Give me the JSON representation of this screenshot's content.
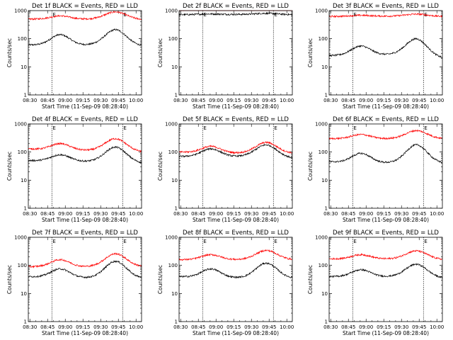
{
  "figure": {
    "xlabel": "Start Time (11-Sep-09 08:28:40)",
    "ylabel": "Counts/sec",
    "x_tick_labels": [
      "08:30",
      "08:45",
      "09:00",
      "09:15",
      "09:30",
      "09:45",
      "10:00"
    ],
    "y_tick_labels": [
      "1",
      "10",
      "100",
      "1000"
    ],
    "marker_labels": [
      "E",
      "E"
    ],
    "colors": {
      "events": "#000000",
      "lld": "#ff0000"
    }
  },
  "chart_data": [
    {
      "type": "line",
      "title": "Det 1f BLACK = Events, RED = LLD",
      "y_scale": "log",
      "ylim": [
        1,
        1000
      ],
      "x_unit": "minutes after 08:28:40",
      "xlim": [
        0,
        96
      ],
      "markers_x": [
        20,
        80
      ],
      "series": [
        {
          "name": "Events",
          "color": "#000000",
          "base": 60,
          "peak1": 140,
          "peak1_x": 27,
          "valley": 60,
          "peak2": 210,
          "peak2_x": 74,
          "end": 55
        },
        {
          "name": "LLD",
          "color": "#ff0000",
          "base": 500,
          "peak1": 650,
          "peak1_x": 27,
          "valley": 500,
          "peak2": 900,
          "peak2_x": 74,
          "end": 480
        }
      ]
    },
    {
      "type": "line",
      "title": "Det 2f BLACK = Events, RED = LLD",
      "y_scale": "log",
      "ylim": [
        1,
        1000
      ],
      "x_unit": "minutes after 08:28:40",
      "xlim": [
        0,
        96
      ],
      "markers_x": [
        20,
        80
      ],
      "series": [
        {
          "name": "Events",
          "color": "#000000",
          "base": 720,
          "peak1": 760,
          "peak1_x": 27,
          "valley": 740,
          "peak2": 800,
          "peak2_x": 74,
          "end": 720
        },
        {
          "name": "LLD",
          "color": "#ff0000",
          "base": 1050,
          "peak1": 1100,
          "peak1_x": 27,
          "valley": 1080,
          "peak2": 1150,
          "peak2_x": 74,
          "end": 1100
        }
      ]
    },
    {
      "type": "line",
      "title": "Det 3f BLACK = Events, RED = LLD",
      "y_scale": "log",
      "ylim": [
        1,
        1000
      ],
      "x_unit": "minutes after 08:28:40",
      "xlim": [
        0,
        96
      ],
      "markers_x": [
        20,
        80
      ],
      "series": [
        {
          "name": "Events",
          "color": "#000000",
          "base": 25,
          "peak1": 55,
          "peak1_x": 27,
          "valley": 28,
          "peak2": 100,
          "peak2_x": 74,
          "end": 20
        },
        {
          "name": "LLD",
          "color": "#ff0000",
          "base": 620,
          "peak1": 680,
          "peak1_x": 27,
          "valley": 640,
          "peak2": 750,
          "peak2_x": 74,
          "end": 620
        }
      ]
    },
    {
      "type": "line",
      "title": "Det 4f BLACK = Events, RED = LLD",
      "y_scale": "log",
      "ylim": [
        1,
        1000
      ],
      "x_unit": "minutes after 08:28:40",
      "xlim": [
        0,
        96
      ],
      "markers_x": [
        20,
        80
      ],
      "series": [
        {
          "name": "Events",
          "color": "#000000",
          "base": 50,
          "peak1": 80,
          "peak1_x": 27,
          "valley": 45,
          "peak2": 150,
          "peak2_x": 74,
          "end": 40
        },
        {
          "name": "LLD",
          "color": "#ff0000",
          "base": 130,
          "peak1": 200,
          "peak1_x": 27,
          "valley": 110,
          "peak2": 300,
          "peak2_x": 74,
          "end": 100
        }
      ]
    },
    {
      "type": "line",
      "title": "Det 5f BLACK = Events, RED = LLD",
      "y_scale": "log",
      "ylim": [
        1,
        1000
      ],
      "x_unit": "minutes after 08:28:40",
      "xlim": [
        0,
        96
      ],
      "markers_x": [
        20,
        80
      ],
      "series": [
        {
          "name": "Events",
          "color": "#000000",
          "base": 70,
          "peak1": 130,
          "peak1_x": 27,
          "valley": 70,
          "peak2": 180,
          "peak2_x": 74,
          "end": 60
        },
        {
          "name": "LLD",
          "color": "#ff0000",
          "base": 100,
          "peak1": 160,
          "peak1_x": 27,
          "valley": 90,
          "peak2": 220,
          "peak2_x": 74,
          "end": 90
        }
      ]
    },
    {
      "type": "line",
      "title": "Det 6f BLACK = Events, RED = LLD",
      "y_scale": "log",
      "ylim": [
        1,
        1000
      ],
      "x_unit": "minutes after 08:28:40",
      "xlim": [
        0,
        96
      ],
      "markers_x": [
        20,
        80
      ],
      "series": [
        {
          "name": "Events",
          "color": "#000000",
          "base": 45,
          "peak1": 90,
          "peak1_x": 27,
          "valley": 40,
          "peak2": 180,
          "peak2_x": 74,
          "end": 40
        },
        {
          "name": "LLD",
          "color": "#ff0000",
          "base": 300,
          "peak1": 420,
          "peak1_x": 27,
          "valley": 300,
          "peak2": 580,
          "peak2_x": 74,
          "end": 300
        }
      ]
    },
    {
      "type": "line",
      "title": "Det 7f BLACK = Events, RED = LLD",
      "y_scale": "log",
      "ylim": [
        1,
        1000
      ],
      "x_unit": "minutes after 08:28:40",
      "xlim": [
        0,
        96
      ],
      "markers_x": [
        20,
        80
      ],
      "series": [
        {
          "name": "Events",
          "color": "#000000",
          "base": 40,
          "peak1": 75,
          "peak1_x": 27,
          "valley": 35,
          "peak2": 140,
          "peak2_x": 74,
          "end": 35
        },
        {
          "name": "LLD",
          "color": "#ff0000",
          "base": 90,
          "peak1": 160,
          "peak1_x": 27,
          "valley": 90,
          "peak2": 260,
          "peak2_x": 74,
          "end": 90
        }
      ]
    },
    {
      "type": "line",
      "title": "Det 8f BLACK = Events, RED = LLD",
      "y_scale": "log",
      "ylim": [
        1,
        1000
      ],
      "x_unit": "minutes after 08:28:40",
      "xlim": [
        0,
        96
      ],
      "markers_x": [
        20,
        80
      ],
      "series": [
        {
          "name": "Events",
          "color": "#000000",
          "base": 40,
          "peak1": 75,
          "peak1_x": 27,
          "valley": 35,
          "peak2": 120,
          "peak2_x": 74,
          "end": 35
        },
        {
          "name": "LLD",
          "color": "#ff0000",
          "base": 160,
          "peak1": 240,
          "peak1_x": 27,
          "valley": 160,
          "peak2": 340,
          "peak2_x": 74,
          "end": 160
        }
      ]
    },
    {
      "type": "line",
      "title": "Det 9f BLACK = Events, RED = LLD",
      "y_scale": "log",
      "ylim": [
        1,
        1000
      ],
      "x_unit": "minutes after 08:28:40",
      "xlim": [
        0,
        96
      ],
      "markers_x": [
        20,
        80
      ],
      "series": [
        {
          "name": "Events",
          "color": "#000000",
          "base": 40,
          "peak1": 70,
          "peak1_x": 27,
          "valley": 40,
          "peak2": 110,
          "peak2_x": 74,
          "end": 35
        },
        {
          "name": "LLD",
          "color": "#ff0000",
          "base": 170,
          "peak1": 240,
          "peak1_x": 27,
          "valley": 170,
          "peak2": 330,
          "peak2_x": 74,
          "end": 160
        }
      ]
    }
  ]
}
